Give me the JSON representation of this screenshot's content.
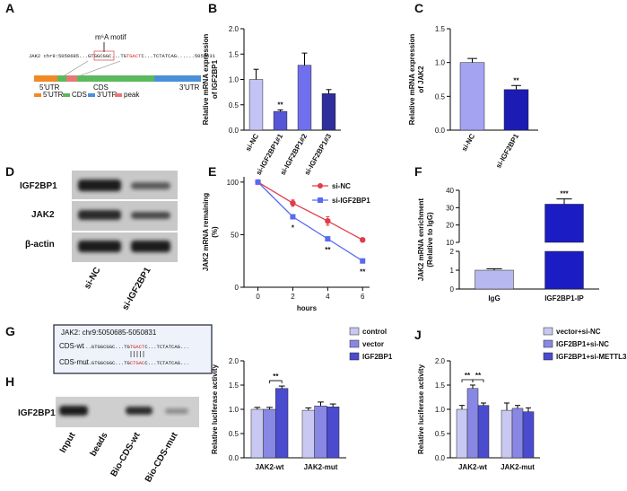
{
  "panel_labels": [
    "A",
    "B",
    "C",
    "D",
    "E",
    "F",
    "G",
    "H",
    "I",
    "J"
  ],
  "diagram_A": {
    "motif_label": "m⁶A motif",
    "sequence": "JAK2 chr9:5050685...GTGGCGGC...TG",
    "motif": "TGACT",
    "sequence_end": "C...TCTATCAG......5050831",
    "regions": [
      "5'UTR",
      "CDS",
      "3'UTR"
    ],
    "legend": [
      "5'UTR",
      "CDS",
      "3'UTR",
      "peak"
    ]
  },
  "blot_D": {
    "proteins": [
      "IGF2BP1",
      "JAK2",
      "β-actin"
    ],
    "lanes": [
      "si-NC",
      "si-IGF2BP1"
    ]
  },
  "sequence_G": {
    "title": "JAK2: chr9:5050685-5050831",
    "rows": [
      {
        "label": "CDS-wt",
        "prefix": "...GTGGCGGC...TG",
        "motif": "TGACT",
        "suffix": "C...TCTATCAG..."
      },
      {
        "label": "CDS-mut",
        "prefix": "...GTGGCGGC...TG",
        "motif": "CTGAC",
        "suffix": "C...TCTATCAG..."
      }
    ]
  },
  "blot_H": {
    "protein": "IGF2BP1",
    "lanes": [
      "Input",
      "beads",
      "Bio-CDS-wt",
      "Bio-CDS-mut"
    ]
  },
  "chart_data": [
    {
      "type": "bar",
      "ylabel": [
        "Relative mRNA expression",
        "of IGF2BP1"
      ],
      "categories": [
        "si-NC",
        "si-IGF2BP1#1",
        "si-IGF2BP1#2",
        "si-IGF2BP1#3"
      ],
      "values": [
        1.0,
        0.37,
        1.28,
        0.72
      ],
      "errors": [
        0.2,
        0.03,
        0.24,
        0.08
      ],
      "colors": [
        "#c3c3f5",
        "#5656d8",
        "#7070ee",
        "#2e2e9c"
      ],
      "ylim": [
        0,
        2.0
      ],
      "yticks": [
        {
          "value": 0,
          "label": "0.0"
        },
        0.5,
        {
          "value": 1,
          "label": "1.0"
        },
        1.5,
        {
          "value": 2,
          "label": "2.0"
        }
      ],
      "annotations": [
        "**"
      ]
    },
    {
      "type": "bar",
      "ylabel": [
        "Relative mRNA expression",
        "of JAK2"
      ],
      "categories": [
        "si-NC",
        "si-IGF2BP1"
      ],
      "values": [
        1.0,
        0.6
      ],
      "errors": [
        0.06,
        0.06
      ],
      "colors": [
        "#a3a3f2",
        "#1c1cb4"
      ],
      "ylim": [
        0,
        1.5
      ],
      "yticks": [
        {
          "value": 0,
          "label": "0.0"
        },
        0.5,
        {
          "value": 1,
          "label": "1.0"
        },
        1.5
      ],
      "annotations": [
        "**"
      ]
    },
    {
      "type": "line",
      "ylabel": [
        "JAK2 mRNA remaining",
        "(%)"
      ],
      "xlabel": "hours",
      "x": [
        0,
        2,
        4,
        6
      ],
      "series": [
        {
          "name": "si-NC",
          "color": "#e03c4a",
          "marker": "circle",
          "values": [
            100,
            80,
            63,
            45
          ],
          "errors": [
            0,
            3,
            4,
            2
          ]
        },
        {
          "name": "si-IGF2BP1",
          "color": "#5a6af0",
          "marker": "square",
          "values": [
            100,
            67,
            46,
            25
          ],
          "errors": [
            0,
            2,
            2,
            2
          ]
        }
      ],
      "xlim": [
        -0.8,
        6.4
      ],
      "xticks": [
        0,
        2,
        4,
        6
      ],
      "ylim": [
        0,
        105
      ],
      "yticks": [
        0,
        50,
        100
      ],
      "legend": "upper right",
      "annotations": [
        "*",
        "**",
        "**"
      ]
    },
    {
      "type": "bar",
      "ylabel": [
        "JAK2 mRNA enrichment",
        "(Relative to IgG)"
      ],
      "categories": [
        "IgG",
        "IGF2BP1-IP"
      ],
      "values": [
        1.0,
        32
      ],
      "errors": [
        0.08,
        3
      ],
      "colors": [
        "#b8b8f0",
        "#1c1cc4"
      ],
      "ylim": [
        0,
        40
      ],
      "ybreak": [
        2,
        10
      ],
      "yticks": [
        0,
        1,
        2,
        10,
        20,
        30,
        40
      ],
      "annotations": [
        "***"
      ]
    },
    {
      "type": "bar",
      "ylabel": [
        "Relative luciferase activity"
      ],
      "categories": [
        "JAK2-wt",
        "JAK2-mut"
      ],
      "series": [
        {
          "name": "control",
          "color": "#c8c8f2",
          "values": [
            1.0,
            0.98
          ],
          "errors": [
            0.04,
            0.05
          ]
        },
        {
          "name": "vector",
          "color": "#8888e4",
          "values": [
            1.0,
            1.07
          ],
          "errors": [
            0.04,
            0.08
          ]
        },
        {
          "name": "IGF2BP1",
          "color": "#4b4bd0",
          "values": [
            1.43,
            1.05
          ],
          "errors": [
            0.05,
            0.06
          ]
        }
      ],
      "ylim": [
        0,
        2.0
      ],
      "yticks": [
        {
          "value": 0,
          "label": "0.0"
        },
        0.5,
        {
          "value": 1,
          "label": "1.0"
        },
        1.5,
        {
          "value": 2,
          "label": "2.0"
        }
      ],
      "legend": "outside right",
      "annotations": [
        "**"
      ]
    },
    {
      "type": "bar",
      "ylabel": [
        "Relative luciferase activity"
      ],
      "categories": [
        "JAK2-wt",
        "JAK2-mut"
      ],
      "series": [
        {
          "name": "vector+si-NC",
          "color": "#c8c8f2",
          "values": [
            1.0,
            0.98
          ],
          "errors": [
            0.08,
            0.15
          ]
        },
        {
          "name": "IGF2BP1+si-NC",
          "color": "#8888e4",
          "values": [
            1.43,
            1.02
          ],
          "errors": [
            0.07,
            0.06
          ]
        },
        {
          "name": "IGF2BP1+si-METTL3",
          "color": "#4b4bd0",
          "values": [
            1.08,
            0.95
          ],
          "errors": [
            0.05,
            0.08
          ]
        }
      ],
      "ylim": [
        0,
        2.0
      ],
      "yticks": [
        {
          "value": 0,
          "label": "0.0"
        },
        0.5,
        {
          "value": 1,
          "label": "1.0"
        },
        1.5,
        {
          "value": 2,
          "label": "2.0"
        }
      ],
      "legend": "outside right",
      "annotations": [
        "**",
        "**"
      ]
    }
  ]
}
